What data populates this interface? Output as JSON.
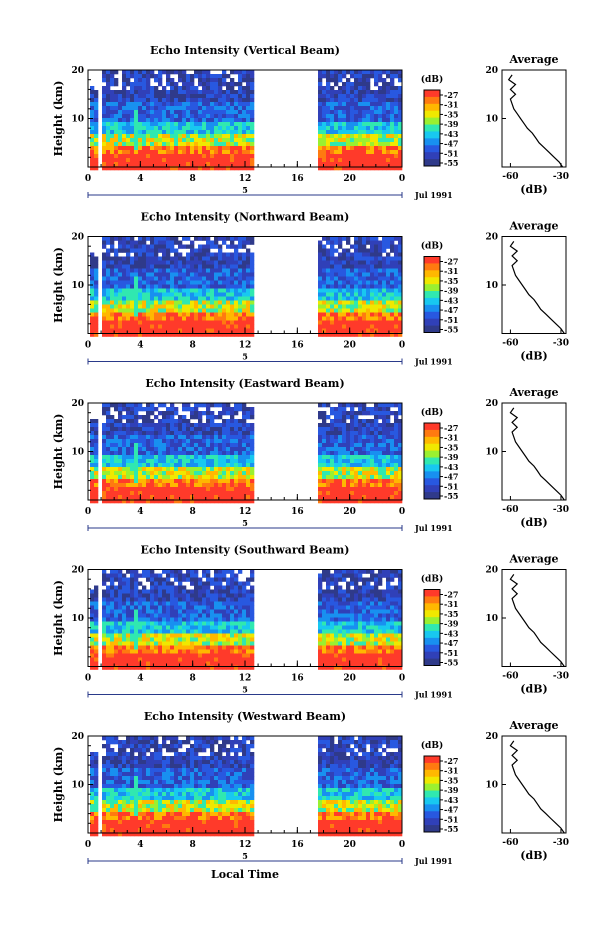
{
  "colors": {
    "scale": [
      "#ff3a2a",
      "#ff7a10",
      "#ffb800",
      "#f0e800",
      "#9af030",
      "#30e8b0",
      "#18c8f0",
      "#1890f0",
      "#2858e0",
      "#3040b8",
      "#2f3a8a"
    ],
    "line": "#000000",
    "background": "#ffffff"
  },
  "shared": {
    "ylabel": "Height (km)",
    "unit": "(dB)",
    "avg_title": "Average",
    "avg_xlabel": "(dB)",
    "date_label": "Jul 1991",
    "day_marker": "5",
    "xlabel": "Local Time",
    "time_ticks": [
      "0",
      "4",
      "8",
      "12",
      "16",
      "20",
      "0"
    ],
    "height_ticks": [
      "20",
      "10"
    ],
    "legend_ticks": [
      "-27",
      "-31",
      "-35",
      "-39",
      "-43",
      "-47",
      "-51",
      "-55"
    ]
  },
  "chart_data": [
    {
      "type": "heatmap",
      "title": "Echo Intensity (Vertical Beam)",
      "x": "Local Time (h)",
      "xlim": [
        0,
        24
      ],
      "ylim": [
        0,
        20
      ],
      "data_gap_hours": [
        12.7,
        17.4
      ],
      "color_range_db": [
        -55,
        -27
      ],
      "average_profile": {
        "avg_ticks": [
          "-60",
          "-30"
        ],
        "xlim": [
          -65,
          -27
        ],
        "height_km": [
          0,
          1,
          2,
          3,
          4,
          5,
          6,
          7,
          8,
          9,
          10,
          11,
          12,
          13,
          14,
          15,
          16,
          17,
          18,
          19
        ],
        "avg_db": [
          -29,
          -31,
          -34,
          -37,
          -40,
          -43,
          -45,
          -47,
          -50,
          -52,
          -54,
          -56,
          -58,
          -59,
          -60,
          -57,
          -60,
          -57,
          -61,
          -59
        ]
      }
    },
    {
      "type": "heatmap",
      "title": "Echo Intensity (Northward Beam)",
      "x": "Local Time (h)",
      "xlim": [
        0,
        24
      ],
      "ylim": [
        0,
        20
      ],
      "data_gap_hours": [
        12.7,
        17.4
      ],
      "color_range_db": [
        -55,
        -27
      ],
      "average_profile": {
        "avg_ticks": [
          "-60",
          "-30"
        ],
        "xlim": [
          -65,
          -27
        ],
        "height_km": [
          0,
          1,
          2,
          3,
          4,
          5,
          6,
          7,
          8,
          9,
          10,
          11,
          12,
          13,
          14,
          15,
          16,
          17,
          18,
          19
        ],
        "avg_db": [
          -28,
          -30,
          -33,
          -36,
          -39,
          -42,
          -44,
          -46,
          -49,
          -51,
          -53,
          -55,
          -57,
          -58,
          -59,
          -56,
          -59,
          -56,
          -60,
          -58
        ]
      }
    },
    {
      "type": "heatmap",
      "title": "Echo Intensity (Eastward Beam)",
      "x": "Local Time (h)",
      "xlim": [
        0,
        24
      ],
      "ylim": [
        0,
        20
      ],
      "data_gap_hours": [
        12.7,
        17.4
      ],
      "color_range_db": [
        -55,
        -27
      ],
      "average_profile": {
        "avg_ticks": [
          "-60",
          "-30"
        ],
        "xlim": [
          -65,
          -27
        ],
        "height_km": [
          0,
          1,
          2,
          3,
          4,
          5,
          6,
          7,
          8,
          9,
          10,
          11,
          12,
          13,
          14,
          15,
          16,
          17,
          18,
          19
        ],
        "avg_db": [
          -28,
          -30,
          -33,
          -36,
          -39,
          -42,
          -44,
          -46,
          -49,
          -51,
          -53,
          -55,
          -57,
          -58,
          -59,
          -56,
          -59,
          -56,
          -60,
          -58
        ]
      }
    },
    {
      "type": "heatmap",
      "title": "Echo Intensity (Southward Beam)",
      "x": "Local Time (h)",
      "xlim": [
        0,
        24
      ],
      "ylim": [
        0,
        20
      ],
      "data_gap_hours": [
        12.7,
        17.4
      ],
      "color_range_db": [
        -55,
        -27
      ],
      "average_profile": {
        "avg_ticks": [
          "-60",
          "-30"
        ],
        "xlim": [
          -65,
          -27
        ],
        "height_km": [
          0,
          1,
          2,
          3,
          4,
          5,
          6,
          7,
          8,
          9,
          10,
          11,
          12,
          13,
          14,
          15,
          16,
          17,
          18,
          19
        ],
        "avg_db": [
          -28,
          -30,
          -33,
          -36,
          -39,
          -42,
          -44,
          -46,
          -49,
          -51,
          -53,
          -55,
          -57,
          -58,
          -59,
          -56,
          -59,
          -56,
          -60,
          -58
        ]
      }
    },
    {
      "type": "heatmap",
      "title": "Echo Intensity (Westward Beam)",
      "x": "Local Time (h)",
      "xlim": [
        0,
        24
      ],
      "ylim": [
        0,
        20
      ],
      "data_gap_hours": [
        12.7,
        17.4
      ],
      "color_range_db": [
        -55,
        -27
      ],
      "average_profile": {
        "avg_ticks": [
          "-60",
          "-30"
        ],
        "xlim": [
          -65,
          -27
        ],
        "height_km": [
          0,
          1,
          2,
          3,
          4,
          5,
          6,
          7,
          8,
          9,
          10,
          11,
          12,
          13,
          14,
          15,
          16,
          17,
          18,
          19
        ],
        "avg_db": [
          -28,
          -30,
          -33,
          -36,
          -39,
          -42,
          -44,
          -46,
          -49,
          -51,
          -53,
          -55,
          -57,
          -58,
          -59,
          -56,
          -59,
          -56,
          -60,
          -58
        ]
      }
    }
  ]
}
